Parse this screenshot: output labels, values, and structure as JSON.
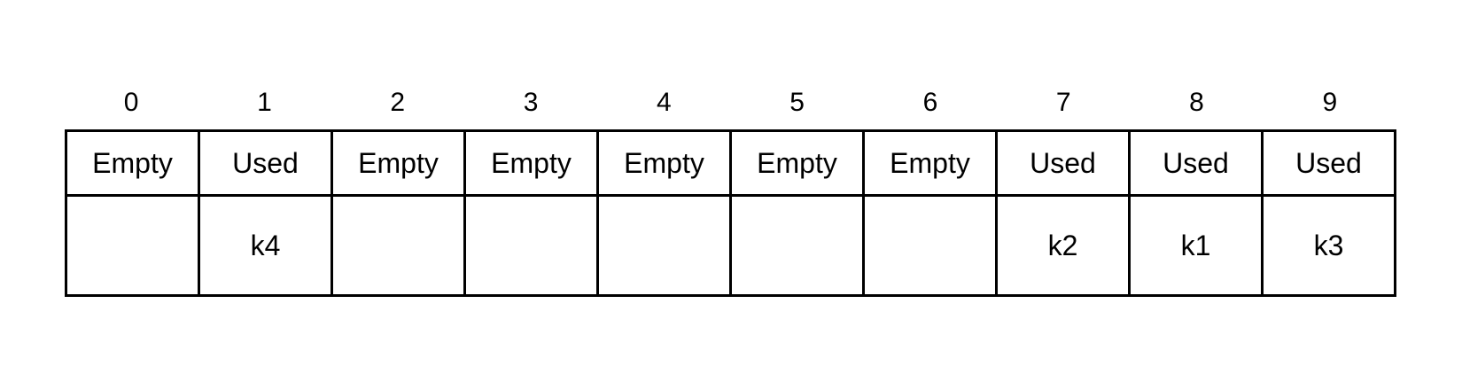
{
  "slots": [
    {
      "index": "0",
      "status": "Empty",
      "key": ""
    },
    {
      "index": "1",
      "status": "Used",
      "key": "k4"
    },
    {
      "index": "2",
      "status": "Empty",
      "key": ""
    },
    {
      "index": "3",
      "status": "Empty",
      "key": ""
    },
    {
      "index": "4",
      "status": "Empty",
      "key": ""
    },
    {
      "index": "5",
      "status": "Empty",
      "key": ""
    },
    {
      "index": "6",
      "status": "Empty",
      "key": ""
    },
    {
      "index": "7",
      "status": "Used",
      "key": "k2"
    },
    {
      "index": "8",
      "status": "Used",
      "key": "k1"
    },
    {
      "index": "9",
      "status": "Used",
      "key": "k3"
    }
  ]
}
